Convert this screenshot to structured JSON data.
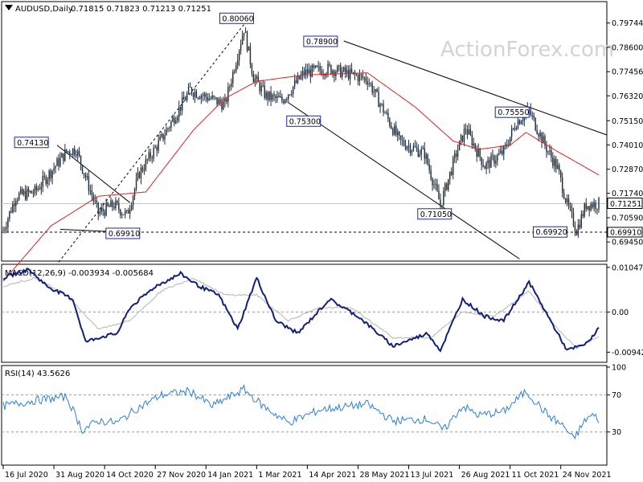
{
  "header": {
    "symbol": "AUDUSD,Daily",
    "ohlc": "0.71815 0.71823 0.71213 0.71251",
    "macd_label": "MACD(12,26,9) -0.003934 -0.005684",
    "rsi_label": "RSI(14) 43.5626",
    "watermark": "ActionForex.com"
  },
  "colors": {
    "candles": "#1d2b3a",
    "ma": "#e0201e",
    "macd": "#11207a",
    "signal": "#b4b4b4",
    "rsi": "#2e7fd8",
    "labels": "#1a2a9a"
  },
  "chart_data": [
    {
      "type": "candlestick",
      "title": "AUDUSD,Daily",
      "ylim": [
        0.6855,
        0.8075
      ],
      "yticks": [
        0.79744,
        0.786,
        0.77456,
        0.7632,
        0.7515,
        0.7401,
        0.7287,
        0.7174,
        0.7059,
        0.6945
      ],
      "x_tick_labels": [
        "16 Jul 2020",
        "31 Aug 2020",
        "14 Oct 2020",
        "27 Nov 2020",
        "14 Jan 2021",
        "1 Mar 2021",
        "14 Apr 2021",
        "28 May 2021",
        "13 Jul 2021",
        "26 Aug 2021",
        "11 Oct 2021",
        "24 Nov 2021"
      ],
      "x_idx_range": [
        0,
        376
      ],
      "x_tick_idx": [
        0,
        32,
        64,
        96,
        128,
        160,
        192,
        224,
        256,
        288,
        320,
        352
      ],
      "close_path": [
        [
          0,
          0.7
        ],
        [
          8,
          0.716
        ],
        [
          20,
          0.718
        ],
        [
          40,
          0.737
        ],
        [
          46,
          0.738
        ],
        [
          60,
          0.708
        ],
        [
          70,
          0.712
        ],
        [
          78,
          0.707
        ],
        [
          86,
          0.727
        ],
        [
          100,
          0.743
        ],
        [
          118,
          0.766
        ],
        [
          140,
          0.759
        ],
        [
          152,
          0.795
        ],
        [
          158,
          0.772
        ],
        [
          166,
          0.763
        ],
        [
          176,
          0.761
        ],
        [
          190,
          0.774
        ],
        [
          206,
          0.776
        ],
        [
          230,
          0.771
        ],
        [
          250,
          0.742
        ],
        [
          266,
          0.736
        ],
        [
          276,
          0.712
        ],
        [
          286,
          0.736
        ],
        [
          292,
          0.748
        ],
        [
          304,
          0.73
        ],
        [
          316,
          0.737
        ],
        [
          324,
          0.751
        ],
        [
          332,
          0.756
        ],
        [
          342,
          0.74
        ],
        [
          350,
          0.729
        ],
        [
          356,
          0.712
        ],
        [
          362,
          0.7
        ],
        [
          368,
          0.712
        ],
        [
          376,
          0.7125
        ]
      ],
      "ma_path": [
        [
          0,
          0.676
        ],
        [
          30,
          0.702
        ],
        [
          60,
          0.716
        ],
        [
          90,
          0.718
        ],
        [
          120,
          0.747
        ],
        [
          140,
          0.762
        ],
        [
          160,
          0.77
        ],
        [
          190,
          0.773
        ],
        [
          230,
          0.774
        ],
        [
          260,
          0.758
        ],
        [
          284,
          0.742
        ],
        [
          300,
          0.738
        ],
        [
          320,
          0.74
        ],
        [
          330,
          0.746
        ],
        [
          350,
          0.737
        ],
        [
          376,
          0.726
        ]
      ],
      "swing_labels": [
        {
          "text": "0.80060",
          "idx": 156,
          "value": 0.8006
        },
        {
          "text": "0.78900",
          "idx": 210,
          "value": 0.789
        },
        {
          "text": "0.74130",
          "idx": 30,
          "value": 0.7413
        },
        {
          "text": "0.75300",
          "idx": 180,
          "value": 0.753
        },
        {
          "text": "0.75550",
          "idx": 334,
          "value": 0.7555
        },
        {
          "text": "0.71050",
          "idx": 282,
          "value": 0.7105
        },
        {
          "text": "0.69910",
          "idx": 74,
          "value": 0.6991
        },
        {
          "text": "0.69920",
          "idx": 358,
          "value": 0.6992
        }
      ],
      "current_price": {
        "text": "0.71251",
        "value": 0.71251
      },
      "support_level": {
        "text": "0.69910",
        "value": 0.6991
      }
    },
    {
      "type": "line",
      "title": "MACD(12,26,9) -0.003934 -0.005684",
      "ylim": [
        -0.0118,
        0.0112
      ],
      "yticks": [
        {
          "label": "0.010472",
          "value": 0.010472
        },
        {
          "label": "0.00",
          "value": 0.0
        },
        {
          "label": "-0.009426",
          "value": -0.009426
        }
      ],
      "series": [
        {
          "values_path": [
            [
              0,
              0.008
            ],
            [
              16,
              0.01
            ],
            [
              28,
              0.006
            ],
            [
              44,
              0.003
            ],
            [
              52,
              -0.007
            ],
            [
              60,
              -0.006
            ],
            [
              72,
              -0.005
            ],
            [
              80,
              0.001
            ],
            [
              96,
              0.006
            ],
            [
              112,
              0.009
            ],
            [
              124,
              0.006
            ],
            [
              136,
              0.004
            ],
            [
              148,
              -0.004
            ],
            [
              160,
              0.008
            ],
            [
              172,
              -0.002
            ],
            [
              186,
              -0.005
            ],
            [
              206,
              0.003
            ],
            [
              224,
              -0.001
            ],
            [
              246,
              -0.008
            ],
            [
              268,
              -0.005
            ],
            [
              276,
              -0.009
            ],
            [
              290,
              0.003
            ],
            [
              304,
              -0.001
            ],
            [
              316,
              -0.002
            ],
            [
              332,
              0.007
            ],
            [
              344,
              -0.001
            ],
            [
              356,
              -0.009
            ],
            [
              368,
              -0.0075
            ],
            [
              376,
              -0.0039
            ]
          ]
        },
        {
          "values_path": [
            [
              0,
              0.006
            ],
            [
              20,
              0.008
            ],
            [
              40,
              0.004
            ],
            [
              60,
              -0.004
            ],
            [
              80,
              -0.002
            ],
            [
              100,
              0.005
            ],
            [
              120,
              0.008
            ],
            [
              140,
              0.004
            ],
            [
              160,
              0.004
            ],
            [
              180,
              -0.002
            ],
            [
              200,
              0.001
            ],
            [
              220,
              0.001
            ],
            [
              246,
              -0.006
            ],
            [
              270,
              -0.006
            ],
            [
              290,
              0.0
            ],
            [
              310,
              -0.001
            ],
            [
              332,
              0.005
            ],
            [
              350,
              -0.004
            ],
            [
              362,
              -0.0085
            ],
            [
              376,
              -0.0057
            ]
          ]
        }
      ]
    },
    {
      "type": "line",
      "title": "RSI(14) 43.5626",
      "ylim": [
        0,
        100
      ],
      "yticks": [
        100,
        70,
        30
      ],
      "levels": [
        70,
        30
      ],
      "values_path": [
        [
          0,
          58
        ],
        [
          20,
          64
        ],
        [
          40,
          68
        ],
        [
          50,
          32
        ],
        [
          60,
          42
        ],
        [
          72,
          40
        ],
        [
          84,
          55
        ],
        [
          100,
          70
        ],
        [
          118,
          74
        ],
        [
          132,
          58
        ],
        [
          152,
          76
        ],
        [
          164,
          58
        ],
        [
          180,
          40
        ],
        [
          200,
          54
        ],
        [
          230,
          60
        ],
        [
          246,
          42
        ],
        [
          268,
          44
        ],
        [
          278,
          32
        ],
        [
          290,
          58
        ],
        [
          300,
          48
        ],
        [
          316,
          52
        ],
        [
          330,
          74
        ],
        [
          344,
          48
        ],
        [
          354,
          36
        ],
        [
          360,
          22
        ],
        [
          368,
          44
        ],
        [
          372,
          48
        ],
        [
          376,
          43.56
        ]
      ]
    }
  ]
}
